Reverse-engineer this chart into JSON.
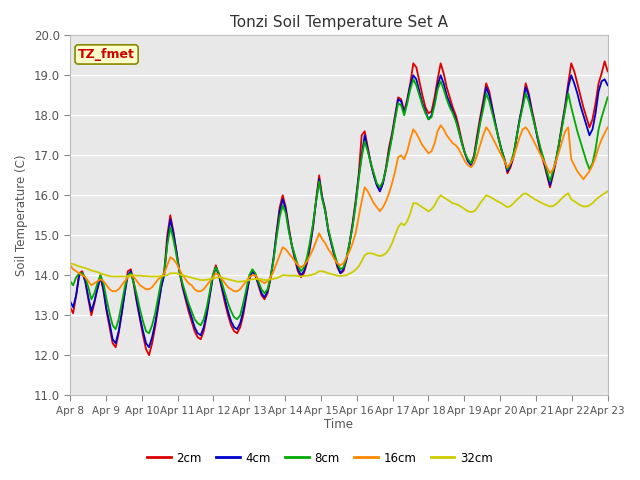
{
  "title": "Tonzi Soil Temperature Set A",
  "ylabel": "Soil Temperature (C)",
  "xlabel": "Time",
  "ylim": [
    11.0,
    20.0
  ],
  "yticks": [
    11.0,
    12.0,
    13.0,
    14.0,
    15.0,
    16.0,
    17.0,
    18.0,
    19.0,
    20.0
  ],
  "x_labels": [
    "Apr 8",
    "Apr 9",
    "Apr 10",
    "Apr 11",
    "Apr 12",
    "Apr 13",
    "Apr 14",
    "Apr 15",
    "Apr 16",
    "Apr 17",
    "Apr 18",
    "Apr 19",
    "Apr 20",
    "Apr 21",
    "Apr 22",
    "Apr 23"
  ],
  "annotation_label": "TZ_fmet",
  "annotation_color": "#cc0000",
  "annotation_box_facecolor": "#ffffcc",
  "annotation_box_edgecolor": "#888800",
  "legend_entries": [
    "2cm",
    "4cm",
    "8cm",
    "16cm",
    "32cm"
  ],
  "line_colors": [
    "#dd0000",
    "#0000cc",
    "#00aa00",
    "#ff8800",
    "#cccc00"
  ],
  "plot_bg_color": "#e8e8e8",
  "fig_bg_color": "#ffffff",
  "grid_color": "#ffffff",
  "series_2cm": [
    13.2,
    13.05,
    13.5,
    14.05,
    14.1,
    13.85,
    13.4,
    13.0,
    13.3,
    13.7,
    14.0,
    13.6,
    13.1,
    12.7,
    12.3,
    12.2,
    12.55,
    13.05,
    13.6,
    14.1,
    14.15,
    13.75,
    13.3,
    12.9,
    12.5,
    12.15,
    12.0,
    12.3,
    12.7,
    13.2,
    13.7,
    14.1,
    15.0,
    15.5,
    15.1,
    14.6,
    14.1,
    13.7,
    13.4,
    13.1,
    12.85,
    12.6,
    12.45,
    12.4,
    12.6,
    13.0,
    13.5,
    14.0,
    14.25,
    14.0,
    13.65,
    13.3,
    13.0,
    12.75,
    12.6,
    12.55,
    12.7,
    13.0,
    13.45,
    13.9,
    14.1,
    14.0,
    13.75,
    13.5,
    13.4,
    13.55,
    13.9,
    14.4,
    15.1,
    15.7,
    16.0,
    15.7,
    15.2,
    14.75,
    14.4,
    14.1,
    13.95,
    14.05,
    14.3,
    14.7,
    15.2,
    15.9,
    16.5,
    15.95,
    15.65,
    15.15,
    14.8,
    14.5,
    14.2,
    14.05,
    14.1,
    14.4,
    14.8,
    15.3,
    15.85,
    16.5,
    17.5,
    17.6,
    17.2,
    16.8,
    16.5,
    16.25,
    16.1,
    16.3,
    16.7,
    17.2,
    17.55,
    18.0,
    18.45,
    18.4,
    18.1,
    18.4,
    18.8,
    19.3,
    19.2,
    18.85,
    18.5,
    18.2,
    18.05,
    18.1,
    18.45,
    18.9,
    19.3,
    19.05,
    18.7,
    18.45,
    18.2,
    18.0,
    17.7,
    17.35,
    17.05,
    16.85,
    16.8,
    17.0,
    17.5,
    17.95,
    18.35,
    18.8,
    18.6,
    18.2,
    17.8,
    17.45,
    17.15,
    16.9,
    16.55,
    16.7,
    16.95,
    17.45,
    17.9,
    18.3,
    18.8,
    18.55,
    18.15,
    17.8,
    17.4,
    17.05,
    16.8,
    16.5,
    16.2,
    16.5,
    16.85,
    17.3,
    17.8,
    18.25,
    18.8,
    19.3,
    19.1,
    18.8,
    18.5,
    18.2,
    17.95,
    17.7,
    17.9,
    18.3,
    18.8,
    19.05,
    19.35,
    19.1
  ],
  "series_4cm": [
    13.35,
    13.2,
    13.5,
    14.0,
    14.05,
    13.85,
    13.45,
    13.1,
    13.35,
    13.65,
    13.95,
    13.65,
    13.15,
    12.8,
    12.4,
    12.3,
    12.6,
    13.05,
    13.55,
    14.0,
    14.1,
    13.8,
    13.35,
    12.95,
    12.6,
    12.3,
    12.2,
    12.45,
    12.8,
    13.25,
    13.7,
    14.0,
    14.85,
    15.4,
    15.05,
    14.6,
    14.1,
    13.75,
    13.45,
    13.2,
    12.95,
    12.7,
    12.55,
    12.5,
    12.7,
    13.05,
    13.5,
    13.95,
    14.2,
    14.0,
    13.7,
    13.4,
    13.1,
    12.85,
    12.7,
    12.65,
    12.8,
    13.1,
    13.5,
    13.9,
    14.1,
    14.0,
    13.8,
    13.55,
    13.45,
    13.6,
    13.95,
    14.45,
    15.05,
    15.6,
    15.9,
    15.65,
    15.15,
    14.75,
    14.45,
    14.15,
    14.0,
    14.1,
    14.35,
    14.75,
    15.25,
    15.85,
    16.4,
    15.95,
    15.6,
    15.1,
    14.8,
    14.5,
    14.25,
    14.05,
    14.15,
    14.4,
    14.8,
    15.25,
    15.8,
    16.45,
    17.0,
    17.5,
    17.15,
    16.8,
    16.5,
    16.25,
    16.1,
    16.3,
    16.65,
    17.1,
    17.5,
    17.95,
    18.4,
    18.35,
    18.05,
    18.35,
    18.75,
    19.0,
    18.9,
    18.6,
    18.3,
    18.1,
    17.9,
    18.0,
    18.3,
    18.75,
    19.0,
    18.8,
    18.5,
    18.3,
    18.1,
    17.9,
    17.6,
    17.3,
    17.05,
    16.85,
    16.75,
    16.95,
    17.4,
    17.85,
    18.25,
    18.7,
    18.5,
    18.15,
    17.8,
    17.45,
    17.15,
    16.9,
    16.6,
    16.75,
    17.0,
    17.45,
    17.9,
    18.25,
    18.7,
    18.5,
    18.1,
    17.75,
    17.4,
    17.1,
    16.85,
    16.55,
    16.25,
    16.55,
    16.9,
    17.3,
    17.75,
    18.2,
    18.7,
    19.0,
    18.8,
    18.55,
    18.25,
    18.0,
    17.75,
    17.5,
    17.65,
    18.05,
    18.6,
    18.85,
    18.9,
    18.75
  ],
  "series_8cm": [
    13.85,
    13.75,
    13.95,
    14.05,
    14.05,
    13.95,
    13.7,
    13.4,
    13.55,
    13.8,
    14.0,
    13.8,
    13.4,
    13.05,
    12.75,
    12.65,
    12.9,
    13.3,
    13.7,
    14.0,
    14.05,
    13.8,
    13.5,
    13.15,
    12.85,
    12.6,
    12.55,
    12.75,
    13.05,
    13.45,
    13.85,
    14.1,
    14.75,
    15.2,
    14.9,
    14.5,
    14.1,
    13.8,
    13.55,
    13.3,
    13.1,
    12.9,
    12.8,
    12.75,
    12.9,
    13.2,
    13.6,
    14.0,
    14.2,
    14.05,
    13.8,
    13.55,
    13.3,
    13.1,
    12.95,
    12.9,
    13.0,
    13.3,
    13.65,
    14.0,
    14.15,
    14.05,
    13.85,
    13.65,
    13.55,
    13.65,
    13.95,
    14.4,
    14.95,
    15.45,
    15.75,
    15.55,
    15.1,
    14.75,
    14.5,
    14.25,
    14.1,
    14.2,
    14.45,
    14.85,
    15.3,
    15.85,
    16.35,
    15.9,
    15.6,
    15.15,
    14.85,
    14.55,
    14.3,
    14.15,
    14.2,
    14.45,
    14.8,
    15.2,
    15.75,
    16.4,
    16.95,
    17.35,
    17.1,
    16.8,
    16.55,
    16.3,
    16.2,
    16.35,
    16.65,
    17.05,
    17.45,
    17.9,
    18.3,
    18.25,
    18.0,
    18.3,
    18.65,
    18.9,
    18.75,
    18.5,
    18.25,
    18.05,
    17.9,
    17.95,
    18.25,
    18.65,
    18.85,
    18.65,
    18.4,
    18.2,
    18.05,
    17.85,
    17.6,
    17.3,
    17.05,
    16.9,
    16.8,
    16.95,
    17.35,
    17.8,
    18.15,
    18.55,
    18.35,
    18.05,
    17.75,
    17.45,
    17.15,
    16.9,
    16.65,
    16.8,
    17.05,
    17.45,
    17.85,
    18.2,
    18.55,
    18.35,
    18.05,
    17.75,
    17.45,
    17.15,
    16.9,
    16.6,
    16.35,
    16.6,
    16.9,
    17.3,
    17.7,
    18.15,
    18.55,
    18.2,
    17.9,
    17.6,
    17.35,
    17.1,
    16.85,
    16.65,
    16.8,
    17.15,
    17.65,
    17.95,
    18.2,
    18.45
  ],
  "series_16cm": [
    14.25,
    14.15,
    14.1,
    14.05,
    14.0,
    13.95,
    13.85,
    13.75,
    13.8,
    13.85,
    13.9,
    13.85,
    13.75,
    13.65,
    13.6,
    13.6,
    13.65,
    13.75,
    13.85,
    13.95,
    14.0,
    13.95,
    13.85,
    13.75,
    13.7,
    13.65,
    13.65,
    13.7,
    13.8,
    13.9,
    13.95,
    14.05,
    14.25,
    14.45,
    14.4,
    14.3,
    14.15,
    14.0,
    13.9,
    13.8,
    13.75,
    13.65,
    13.6,
    13.6,
    13.65,
    13.75,
    13.85,
    13.95,
    14.05,
    14.0,
    13.9,
    13.8,
    13.7,
    13.65,
    13.6,
    13.6,
    13.65,
    13.75,
    13.85,
    13.95,
    14.0,
    14.0,
    13.9,
    13.85,
    13.8,
    13.85,
    13.95,
    14.1,
    14.3,
    14.5,
    14.7,
    14.65,
    14.55,
    14.45,
    14.35,
    14.25,
    14.2,
    14.25,
    14.35,
    14.5,
    14.65,
    14.85,
    15.05,
    14.9,
    14.8,
    14.65,
    14.55,
    14.4,
    14.3,
    14.25,
    14.3,
    14.45,
    14.6,
    14.8,
    15.05,
    15.45,
    15.85,
    16.2,
    16.1,
    15.95,
    15.8,
    15.7,
    15.6,
    15.7,
    15.85,
    16.05,
    16.3,
    16.6,
    16.95,
    17.0,
    16.9,
    17.1,
    17.4,
    17.65,
    17.55,
    17.4,
    17.25,
    17.15,
    17.05,
    17.1,
    17.3,
    17.6,
    17.75,
    17.65,
    17.5,
    17.4,
    17.3,
    17.25,
    17.15,
    17.0,
    16.85,
    16.75,
    16.7,
    16.8,
    17.0,
    17.25,
    17.5,
    17.7,
    17.6,
    17.45,
    17.3,
    17.15,
    17.0,
    16.85,
    16.7,
    16.8,
    16.95,
    17.2,
    17.45,
    17.65,
    17.7,
    17.6,
    17.45,
    17.3,
    17.15,
    17.0,
    16.85,
    16.7,
    16.55,
    16.65,
    16.85,
    17.1,
    17.35,
    17.6,
    17.7,
    16.9,
    16.75,
    16.6,
    16.5,
    16.4,
    16.5,
    16.6,
    16.75,
    16.95,
    17.2,
    17.4,
    17.55,
    17.7
  ],
  "series_32cm": [
    14.3,
    14.28,
    14.25,
    14.22,
    14.2,
    14.18,
    14.15,
    14.12,
    14.1,
    14.08,
    14.05,
    14.02,
    14.0,
    13.98,
    13.97,
    13.97,
    13.97,
    13.97,
    13.97,
    13.98,
    14.0,
    14.0,
    13.99,
    13.99,
    13.98,
    13.98,
    13.97,
    13.97,
    13.97,
    13.97,
    13.98,
    13.99,
    14.0,
    14.05,
    14.05,
    14.05,
    14.02,
    14.0,
    13.98,
    13.96,
    13.94,
    13.92,
    13.9,
    13.88,
    13.88,
    13.89,
    13.9,
    13.92,
    13.94,
    13.95,
    13.94,
    13.92,
    13.9,
    13.88,
    13.86,
    13.84,
    13.84,
    13.85,
    13.86,
    13.88,
    13.9,
    13.91,
    13.9,
    13.9,
    13.88,
    13.88,
    13.9,
    13.91,
    13.93,
    13.96,
    14.0,
    14.0,
    13.99,
    13.99,
    13.99,
    13.98,
    13.97,
    13.98,
    13.99,
    14.0,
    14.02,
    14.05,
    14.1,
    14.1,
    14.08,
    14.05,
    14.03,
    14.01,
    13.99,
    13.98,
    13.99,
    14.0,
    14.04,
    14.08,
    14.14,
    14.22,
    14.35,
    14.5,
    14.55,
    14.55,
    14.53,
    14.5,
    14.48,
    14.5,
    14.55,
    14.65,
    14.8,
    15.0,
    15.2,
    15.3,
    15.25,
    15.35,
    15.55,
    15.8,
    15.8,
    15.75,
    15.7,
    15.65,
    15.6,
    15.65,
    15.75,
    15.9,
    16.0,
    15.95,
    15.9,
    15.85,
    15.8,
    15.78,
    15.75,
    15.7,
    15.65,
    15.6,
    15.58,
    15.6,
    15.68,
    15.8,
    15.9,
    16.0,
    15.97,
    15.93,
    15.88,
    15.84,
    15.8,
    15.75,
    15.7,
    15.73,
    15.8,
    15.88,
    15.95,
    16.02,
    16.05,
    16.0,
    15.95,
    15.9,
    15.86,
    15.82,
    15.78,
    15.75,
    15.72,
    15.73,
    15.78,
    15.85,
    15.93,
    16.0,
    16.05,
    15.9,
    15.85,
    15.8,
    15.75,
    15.72,
    15.72,
    15.75,
    15.8,
    15.88,
    15.95,
    16.0,
    16.05,
    16.1
  ]
}
